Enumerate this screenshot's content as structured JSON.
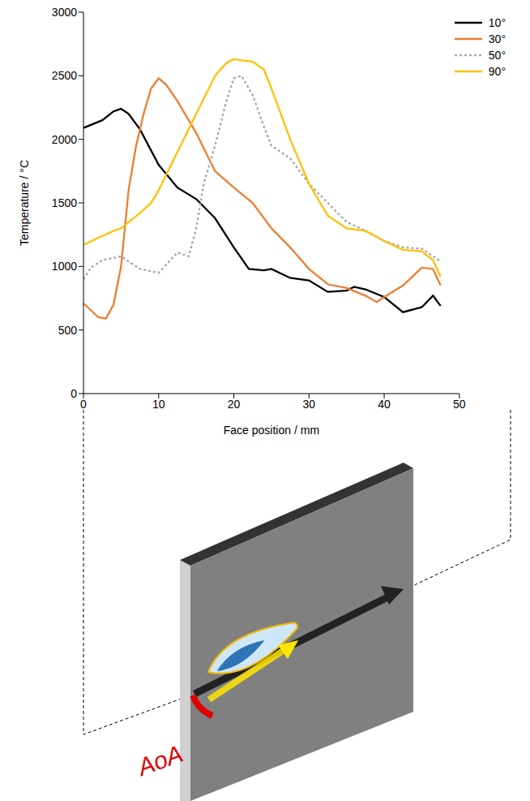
{
  "chart_data": {
    "type": "line",
    "x_label": "Face position / mm",
    "y_label": "Temperature / °C",
    "xlim": [
      0,
      50
    ],
    "xticks": [
      0,
      10,
      20,
      30,
      40,
      50
    ],
    "ylim": [
      0,
      3000
    ],
    "yticks": [
      0,
      500,
      1000,
      1500,
      2000,
      2500,
      3000
    ],
    "grid": false,
    "legend": "upper right",
    "series": [
      {
        "name": "10°",
        "color": "#000000",
        "line_style": "solid",
        "x": [
          0,
          2.5,
          4,
          5,
          6,
          7.5,
          10,
          12.5,
          15,
          17.5,
          20,
          22,
          24,
          25,
          27.5,
          30,
          32.5,
          35,
          36,
          37.5,
          40,
          42.5,
          45,
          46.5,
          47.5
        ],
        "values": [
          2090,
          2150,
          2220,
          2240,
          2200,
          2080,
          1800,
          1620,
          1530,
          1380,
          1150,
          980,
          970,
          980,
          910,
          890,
          800,
          810,
          840,
          820,
          760,
          640,
          680,
          770,
          690
        ]
      },
      {
        "name": "30°",
        "color": "#ed7d31",
        "line_style": "solid",
        "x": [
          0,
          2,
          3,
          4,
          5,
          6,
          7,
          8,
          9,
          10,
          11,
          12.5,
          15,
          17.5,
          20,
          22.5,
          25,
          27.5,
          30,
          32.5,
          35,
          37.5,
          39,
          40,
          42.5,
          45,
          46.5,
          47.5
        ],
        "values": [
          710,
          600,
          590,
          700,
          1000,
          1600,
          1950,
          2200,
          2400,
          2480,
          2430,
          2300,
          2050,
          1750,
          1620,
          1500,
          1300,
          1150,
          980,
          860,
          830,
          770,
          720,
          760,
          850,
          990,
          980,
          850
        ]
      },
      {
        "name": "50°",
        "color": "#a6a6a6",
        "line_style": "dotted",
        "x": [
          0,
          1,
          2.5,
          5,
          7.5,
          10,
          12.5,
          14,
          15,
          16,
          17.5,
          19,
          20,
          21,
          22.5,
          24,
          25,
          27.5,
          30,
          32.5,
          35,
          37.5,
          40,
          42.5,
          45,
          47.5
        ],
        "values": [
          900,
          990,
          1050,
          1080,
          980,
          950,
          1110,
          1080,
          1300,
          1650,
          1950,
          2300,
          2480,
          2500,
          2350,
          2100,
          1950,
          1850,
          1650,
          1500,
          1350,
          1280,
          1200,
          1150,
          1140,
          1040
        ]
      },
      {
        "name": "90°",
        "color": "#ffc000",
        "line_style": "solid",
        "x": [
          0,
          2.5,
          4,
          5,
          7.5,
          9,
          10,
          12.5,
          15,
          17.5,
          19,
          20,
          22.5,
          24,
          25,
          27.5,
          30,
          32.5,
          35,
          37.5,
          40,
          42.5,
          45,
          46.5,
          47.5
        ],
        "values": [
          1170,
          1240,
          1280,
          1300,
          1420,
          1500,
          1600,
          1900,
          2200,
          2500,
          2600,
          2630,
          2610,
          2550,
          2400,
          2000,
          1650,
          1400,
          1300,
          1280,
          1200,
          1130,
          1120,
          1050,
          920
        ]
      }
    ]
  },
  "diagram": {
    "label": "AoA"
  }
}
